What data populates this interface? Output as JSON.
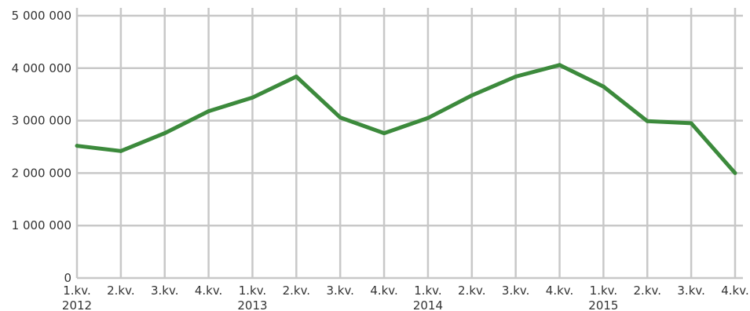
{
  "chart_data": {
    "type": "line",
    "title": "",
    "xlabel": "",
    "ylabel": "",
    "ylim": [
      0,
      5000000
    ],
    "yticks": [
      0,
      1000000,
      2000000,
      3000000,
      4000000,
      5000000
    ],
    "ytick_labels": [
      "0",
      "1 000 000",
      "2 000 000",
      "3 000 000",
      "4 000 000",
      "5 000 000"
    ],
    "categories": [
      "1.kv.",
      "2.kv.",
      "3.kv.",
      "4.kv.",
      "1.kv.",
      "2.kv.",
      "3.kv.",
      "4.kv.",
      "1.kv.",
      "2.kv.",
      "3.kv.",
      "4.kv.",
      "1.kv.",
      "2.kv.",
      "3.kv.",
      "4.kv."
    ],
    "category_groups": [
      {
        "label": "2012",
        "start": 0
      },
      {
        "label": "2013",
        "start": 4
      },
      {
        "label": "2014",
        "start": 8
      },
      {
        "label": "2015",
        "start": 12
      }
    ],
    "series": [
      {
        "values": [
          2520000,
          2420000,
          2760000,
          3180000,
          3440000,
          3840000,
          3060000,
          2760000,
          3050000,
          3480000,
          3840000,
          4060000,
          3650000,
          2990000,
          2950000,
          2000000
        ],
        "color": "#3c8a3c"
      }
    ],
    "grid": true,
    "grid_color": "#c8c8c8",
    "legend": "none"
  }
}
